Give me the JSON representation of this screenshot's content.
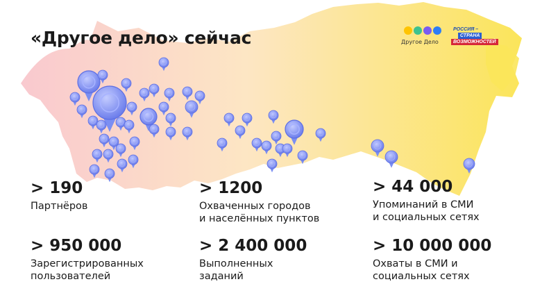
{
  "title": "«Другое дело» сейчас",
  "logos": {
    "drugoe_delo": {
      "mark_icon": "dobro-letters-logo",
      "name": "Другое Дело",
      "colors": [
        "#ffc400",
        "#3ec28f",
        "#7a5cf0",
        "#2e7df6"
      ]
    },
    "rsv": {
      "line1": "РОССИЯ –",
      "line2": "СТРАНА",
      "line3": "ВОЗМОЖНОСТЕЙ"
    }
  },
  "map": {
    "icon": "russia-map",
    "pin_icon": "location-pin-icon",
    "gradient": [
      "#f9c9cf",
      "#fde6c4",
      "#fbe55a"
    ],
    "pin_color": "#7b8ef2"
  },
  "stats": [
    {
      "value": "> 190",
      "label": [
        "Партнёров"
      ]
    },
    {
      "value": "> 1200",
      "label": [
        "Охваченных городов",
        "и населённых пунктов"
      ]
    },
    {
      "value": "> 44 000",
      "label": [
        "Упоминаний в СМИ",
        "и социальных сетях"
      ]
    },
    {
      "value": "> 950 000",
      "label": [
        "Зарегистрированных",
        "пользователей"
      ]
    },
    {
      "value": "> 2 400 000",
      "label": [
        "Выполненных",
        "заданий"
      ]
    },
    {
      "value": "> 10 000 000",
      "label": [
        "Охваты в СМИ и",
        "социальных сетях"
      ]
    }
  ]
}
